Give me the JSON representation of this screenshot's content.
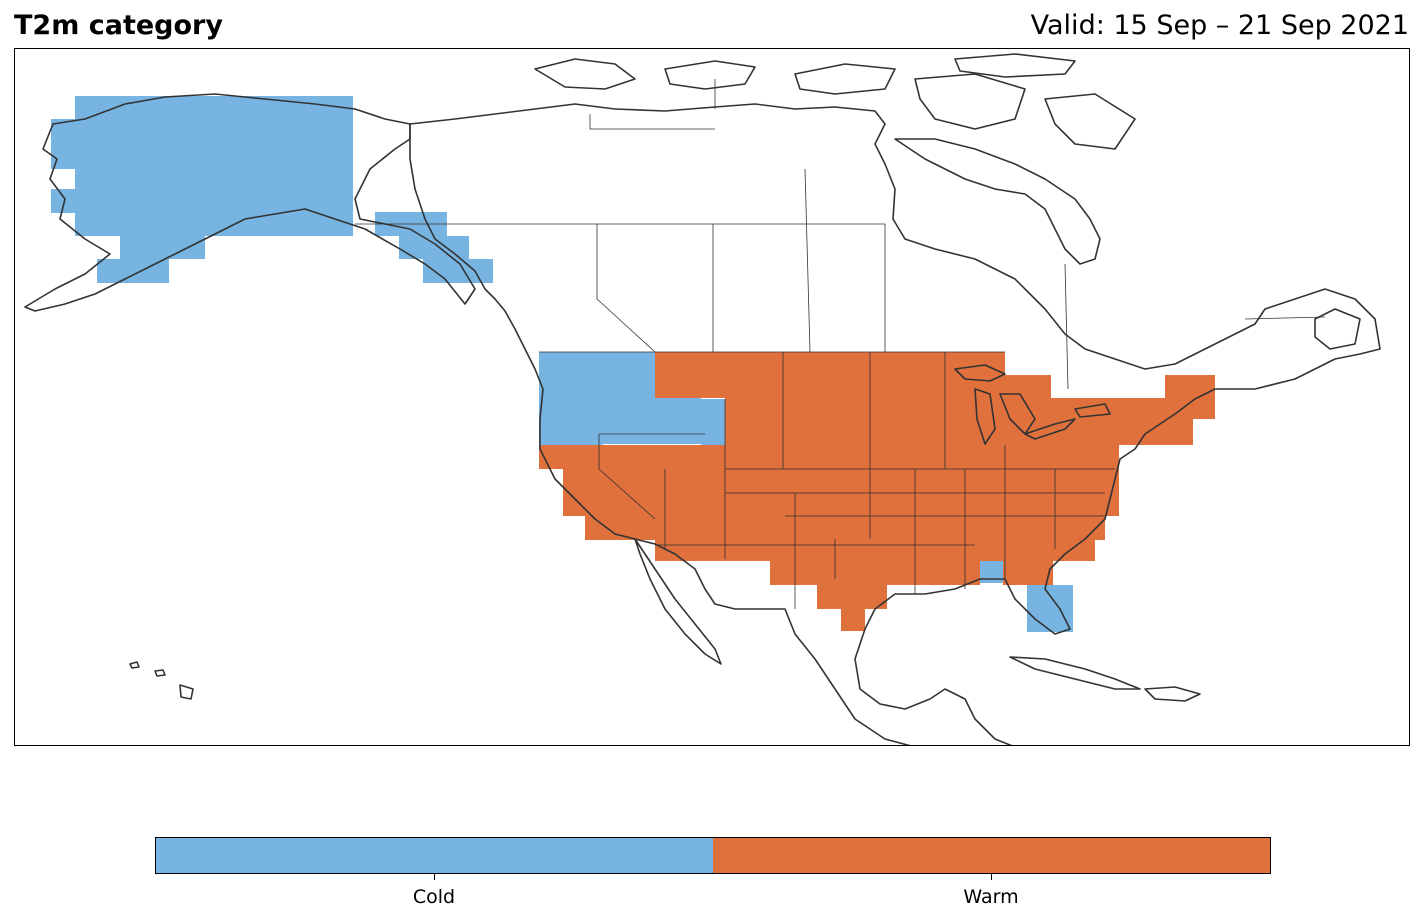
{
  "header": {
    "title": "T2m category",
    "valid": "Valid: 15 Sep – 21 Sep 2021"
  },
  "map": {
    "region": "North America",
    "category_colors": {
      "cold": "#77b4e1",
      "warm": "#e0703c"
    },
    "coastline_color": "#333333"
  },
  "colorbar": {
    "categories": [
      {
        "label": "Cold",
        "color": "#77b4e1"
      },
      {
        "label": "Warm",
        "color": "#e0703c"
      }
    ]
  }
}
